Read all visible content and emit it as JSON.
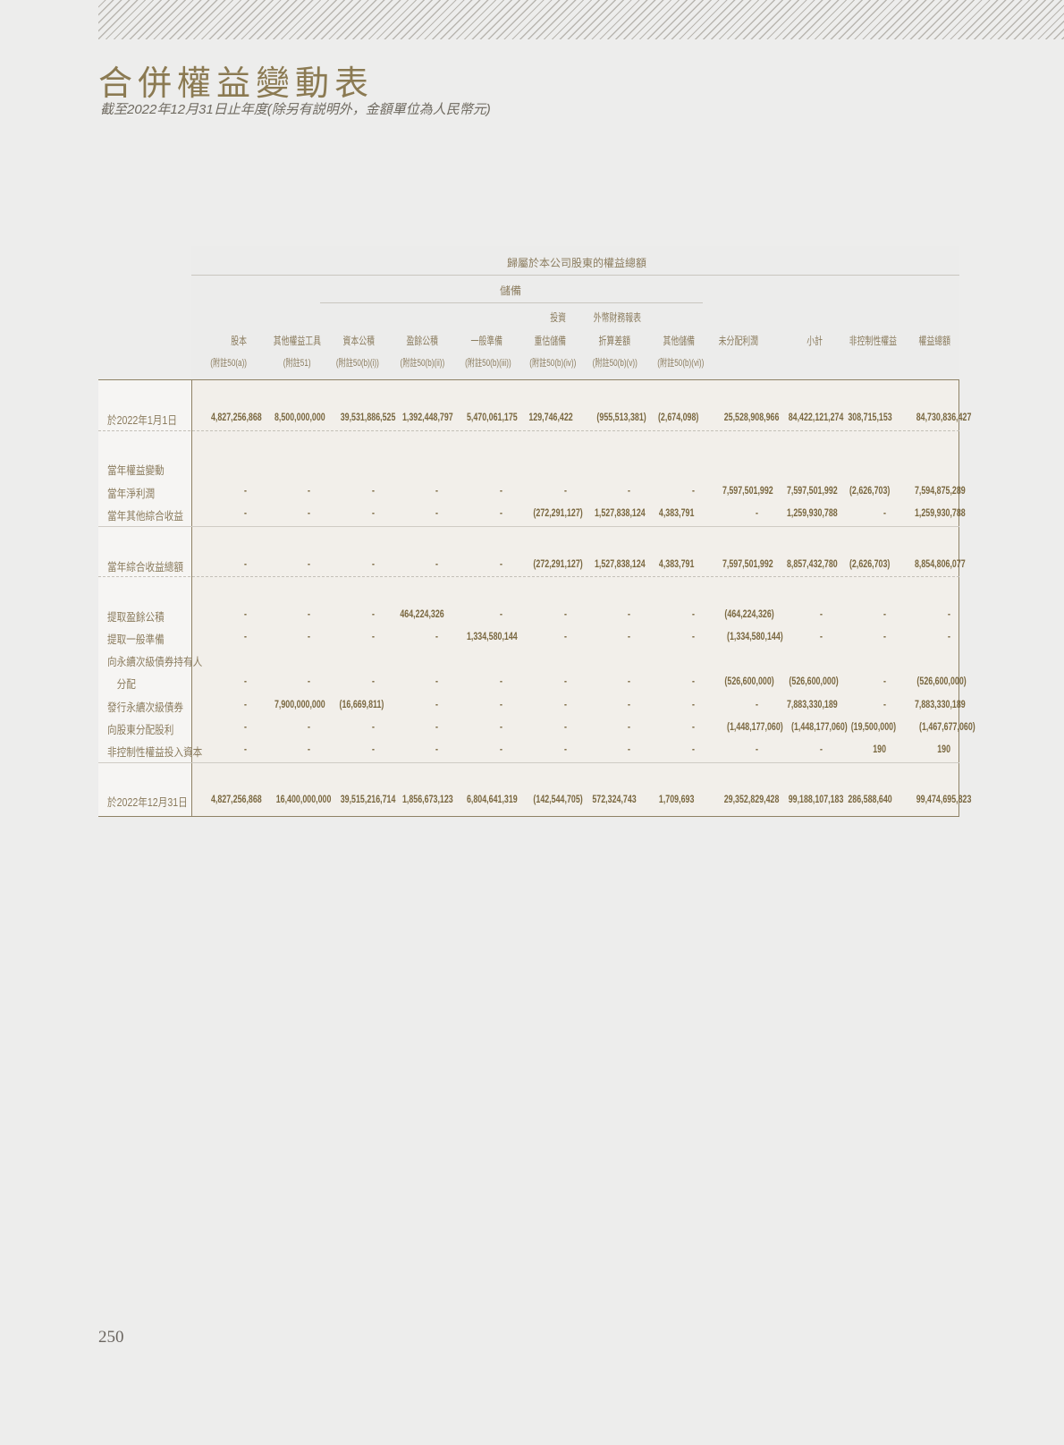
{
  "page": {
    "title": "合併權益變動表",
    "subtitle": "截至2022年12月31日止年度(除另有説明外，金額單位為人民幣元)",
    "page_number": "250"
  },
  "table": {
    "group_header": "歸屬於本公司股東的權益總額",
    "reserve_header": "儲備",
    "columns": [
      {
        "line1": "",
        "line2": "股本",
        "note": "(附註50(a))"
      },
      {
        "line1": "",
        "line2": "其他權益工具",
        "note": "(附註51)"
      },
      {
        "line1": "",
        "line2": "資本公積",
        "note": "(附註50(b)(i))"
      },
      {
        "line1": "",
        "line2": "盈餘公積",
        "note": "(附註50(b)(ii))"
      },
      {
        "line1": "",
        "line2": "一般準備",
        "note": "(附註50(b)(iii))"
      },
      {
        "line1": "投資",
        "line2": "重估儲備",
        "note": "(附註50(b)(iv))"
      },
      {
        "line1": "外幣財務報表",
        "line2": "折算差額",
        "note": "(附註50(b)(v))"
      },
      {
        "line1": "",
        "line2": "其他儲備",
        "note": "(附註50(b)(vi))"
      },
      {
        "line1": "",
        "line2": "未分配利潤",
        "note": ""
      },
      {
        "line1": "",
        "line2": "小計",
        "note": ""
      },
      {
        "line1": "",
        "line2": "非控制性權益",
        "note": ""
      },
      {
        "line1": "",
        "line2": "權益總額",
        "note": ""
      }
    ],
    "rows": [
      {
        "label": "於2022年1月1日",
        "values": [
          "4,827,256,868",
          "8,500,000,000",
          "39,531,886,525",
          "1,392,448,797",
          "5,470,061,175",
          "129,746,422",
          "(955,513,381)",
          "(2,674,098)",
          "25,528,908,966",
          "84,422,121,274",
          "308,715,153",
          "84,730,836,427"
        ]
      },
      {
        "label": "當年權益變動",
        "values": []
      },
      {
        "label": "當年淨利潤",
        "values": [
          "-",
          "-",
          "-",
          "-",
          "-",
          "-",
          "-",
          "-",
          "7,597,501,992",
          "7,597,501,992",
          "(2,626,703)",
          "7,594,875,289"
        ]
      },
      {
        "label": "當年其他綜合收益",
        "values": [
          "-",
          "-",
          "-",
          "-",
          "-",
          "(272,291,127)",
          "1,527,838,124",
          "4,383,791",
          "-",
          "1,259,930,788",
          "-",
          "1,259,930,788"
        ]
      },
      {
        "label": "當年綜合收益總額",
        "values": [
          "-",
          "-",
          "-",
          "-",
          "-",
          "(272,291,127)",
          "1,527,838,124",
          "4,383,791",
          "7,597,501,992",
          "8,857,432,780",
          "(2,626,703)",
          "8,854,806,077"
        ]
      },
      {
        "label": "提取盈餘公積",
        "values": [
          "-",
          "-",
          "-",
          "464,224,326",
          "-",
          "-",
          "-",
          "-",
          "(464,224,326)",
          "-",
          "-",
          "-"
        ]
      },
      {
        "label": "提取一般準備",
        "values": [
          "-",
          "-",
          "-",
          "-",
          "1,334,580,144",
          "-",
          "-",
          "-",
          "(1,334,580,144)",
          "-",
          "-",
          "-"
        ]
      },
      {
        "label": "向永續次級債券持有人",
        "values": []
      },
      {
        "label": "　分配",
        "values": [
          "-",
          "-",
          "-",
          "-",
          "-",
          "-",
          "-",
          "-",
          "(526,600,000)",
          "(526,600,000)",
          "-",
          "(526,600,000)"
        ]
      },
      {
        "label": "發行永續次級債券",
        "values": [
          "-",
          "7,900,000,000",
          "(16,669,811)",
          "-",
          "-",
          "-",
          "-",
          "-",
          "-",
          "7,883,330,189",
          "-",
          "7,883,330,189"
        ]
      },
      {
        "label": "向股東分配股利",
        "values": [
          "-",
          "-",
          "-",
          "-",
          "-",
          "-",
          "-",
          "-",
          "(1,448,177,060)",
          "(1,448,177,060)",
          "(19,500,000)",
          "(1,467,677,060)"
        ]
      },
      {
        "label": "非控制性權益投入資本",
        "values": [
          "-",
          "-",
          "-",
          "-",
          "-",
          "-",
          "-",
          "-",
          "-",
          "-",
          "190",
          "190"
        ]
      },
      {
        "label": "於2022年12月31日",
        "values": [
          "4,827,256,868",
          "16,400,000,000",
          "39,515,216,714",
          "1,856,673,123",
          "6,804,641,319",
          "(142,544,705)",
          "572,324,743",
          "1,709,693",
          "29,352,829,428",
          "99,188,107,183",
          "286,588,640",
          "99,474,695,823"
        ]
      }
    ]
  },
  "colors": {
    "accent": "#8b7a52",
    "number": "#7a6840",
    "border": "#8f8265"
  }
}
